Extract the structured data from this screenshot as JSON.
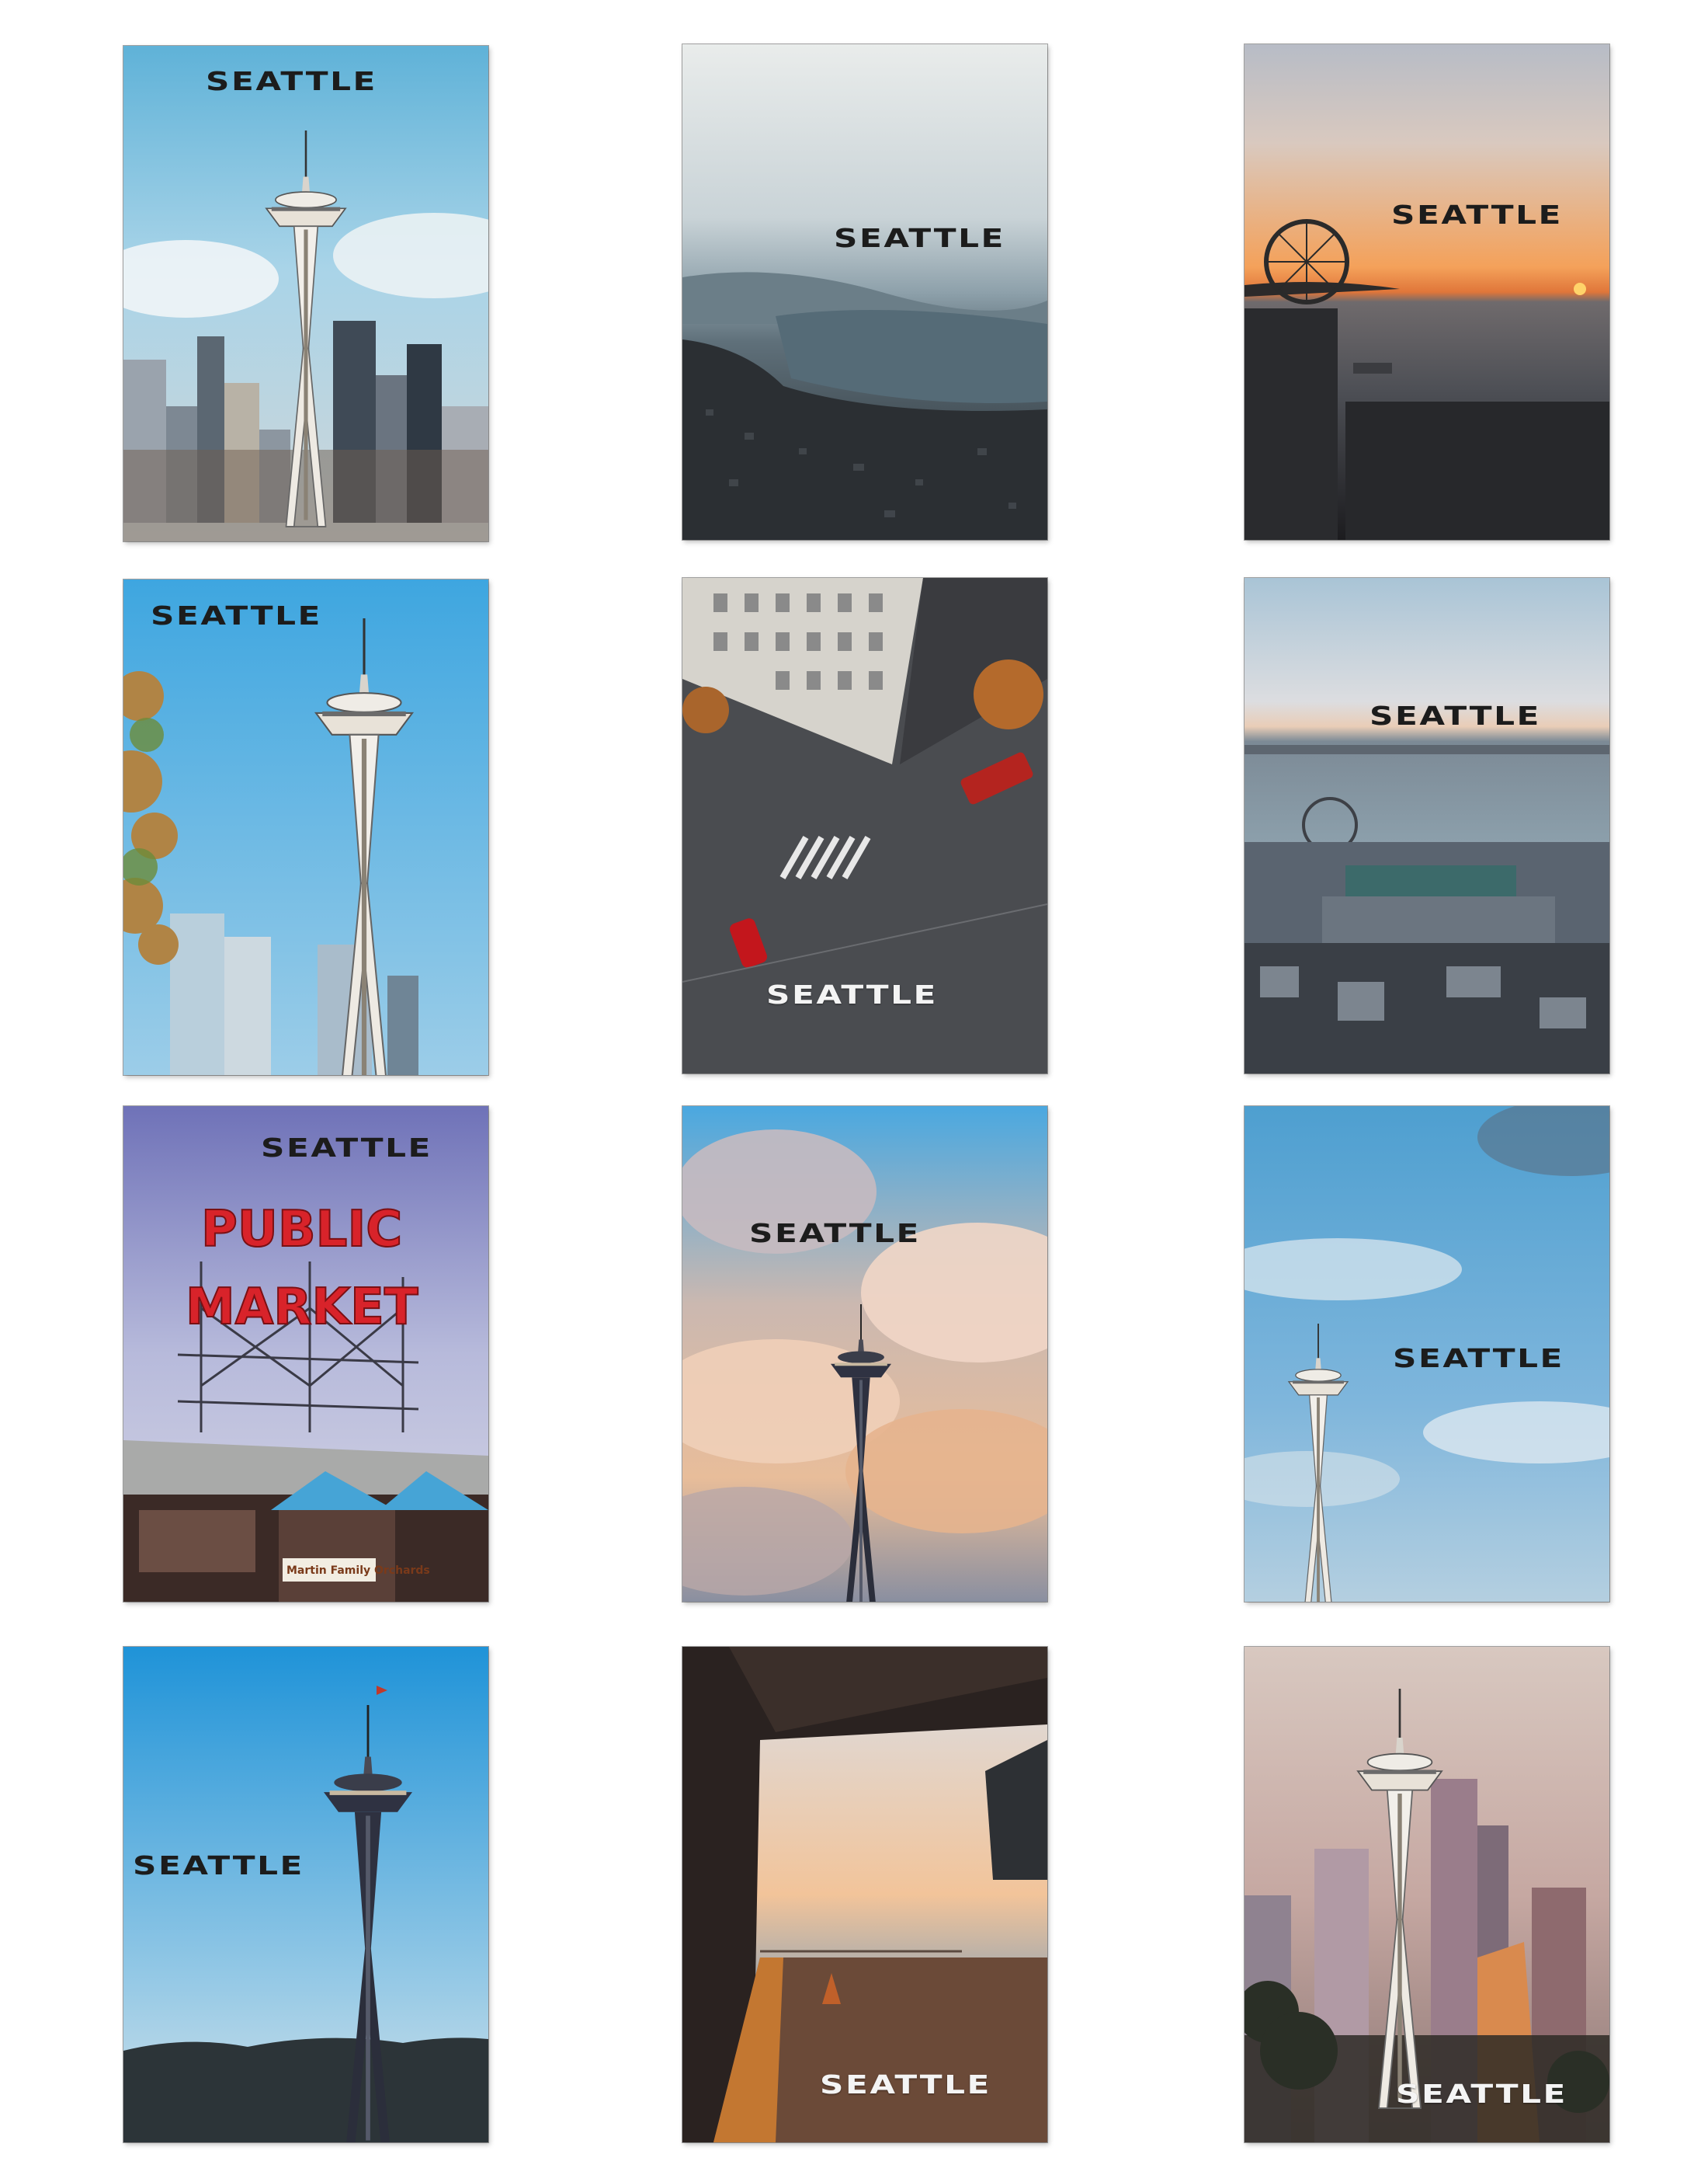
{
  "cards": [
    {
      "caption": "SEATTLE"
    },
    {
      "caption": "SEATTLE"
    },
    {
      "caption": "SEATTLE"
    },
    {
      "caption": "SEATTLE"
    },
    {
      "caption": "SEATTLE"
    },
    {
      "caption": "SEATTLE"
    },
    {
      "caption": "SEATTLE",
      "sign_line1": "PUBLIC",
      "sign_line2": "MARKET",
      "stall_sign": "Martin Family Orchards"
    },
    {
      "caption": "SEATTLE"
    },
    {
      "caption": "SEATTLE"
    },
    {
      "caption": "SEATTLE"
    },
    {
      "caption": "SEATTLE"
    },
    {
      "caption": "SEATTLE"
    }
  ],
  "colors": {
    "caption_dark": "#1c1c1c",
    "caption_light": "#f4f4f4",
    "sign_red": "#d8232a"
  }
}
